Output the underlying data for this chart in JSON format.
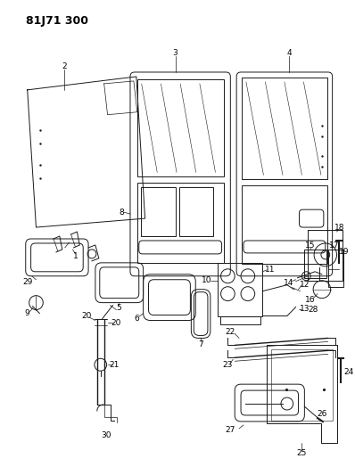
{
  "title": "81J71 300",
  "bg_color": "#ffffff",
  "line_color": "#1a1a1a",
  "label_color": "#000000",
  "title_fontsize": 9,
  "label_fontsize": 6.5
}
